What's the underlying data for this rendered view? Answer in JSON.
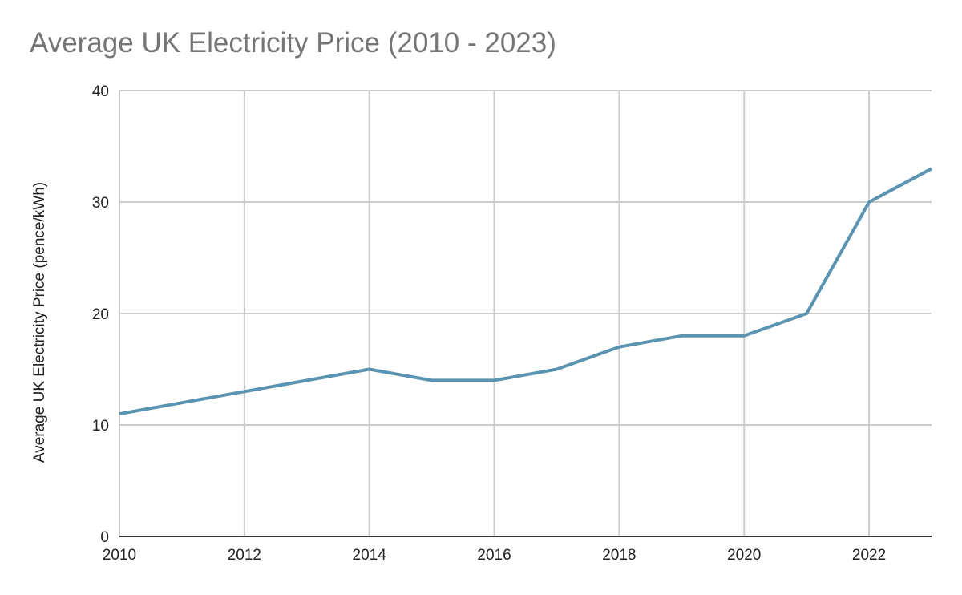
{
  "chart_data": {
    "type": "line",
    "title": "Average UK Electricity Price (2010 - 2023)",
    "xlabel": "",
    "ylabel": "Average UK Electricity Price (pence/kWh)",
    "x": [
      2010,
      2011,
      2012,
      2013,
      2014,
      2015,
      2016,
      2017,
      2018,
      2019,
      2020,
      2021,
      2022,
      2023
    ],
    "series": [
      {
        "name": "Average UK Electricity Price (pence/kWh)",
        "values": [
          11,
          12,
          13,
          14,
          15,
          14,
          14,
          15,
          17,
          18,
          18,
          20,
          30,
          33
        ],
        "color": "#5b94b1"
      }
    ],
    "xlim": [
      2010,
      2023
    ],
    "ylim": [
      0,
      40
    ],
    "xticks": [
      "2010",
      "2012",
      "2014",
      "2016",
      "2018",
      "2020",
      "2022"
    ],
    "yticks": [
      "0",
      "10",
      "20",
      "30",
      "40"
    ],
    "grid": true,
    "legend": "none"
  }
}
